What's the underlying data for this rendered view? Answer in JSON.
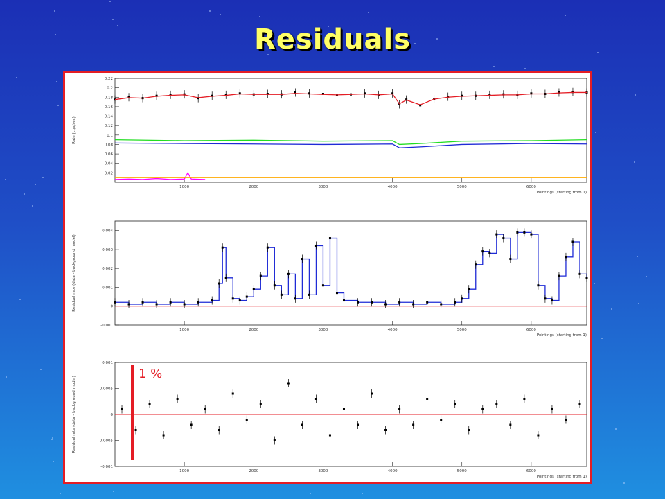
{
  "slide": {
    "title": "Residuals",
    "annotation": "1 %",
    "colors": {
      "title": "#ffff66",
      "frame": "#e41d25",
      "annotation": "#e41d25"
    }
  },
  "chart_data": [
    {
      "type": "scatter",
      "title": "",
      "ylabel": "Rate (ct/s/sec)",
      "xlabel": "Pointings (starting from 1)",
      "xlim": [
        0,
        6800
      ],
      "ylim": [
        0,
        0.22
      ],
      "xticks": [
        1000,
        2000,
        3000,
        4000,
        5000,
        6000
      ],
      "yticks": [
        0.02,
        0.04,
        0.06,
        0.08,
        0.1,
        0.12,
        0.14,
        0.16,
        0.18,
        0.2,
        0.22
      ],
      "yticklabels": [
        "0.02",
        "0.04",
        "0.06",
        "0.08",
        "0.1",
        "0.12",
        "0.14",
        "0.16",
        "0.18",
        "0.2",
        "0.22"
      ],
      "series": [
        {
          "color": "#000000",
          "style": "points",
          "x": [
            0,
            200,
            400,
            600,
            800,
            1000,
            1200,
            1400,
            1600,
            1800,
            2000,
            2200,
            2400,
            2600,
            2800,
            3000,
            3200,
            3400,
            3600,
            3800,
            4000,
            4100,
            4200,
            4400,
            4600,
            4800,
            5000,
            5200,
            5400,
            5600,
            5800,
            6000,
            6200,
            6400,
            6600,
            6800
          ],
          "y": [
            0.175,
            0.18,
            0.178,
            0.183,
            0.185,
            0.186,
            0.178,
            0.183,
            0.185,
            0.188,
            0.186,
            0.187,
            0.186,
            0.19,
            0.188,
            0.187,
            0.185,
            0.186,
            0.188,
            0.185,
            0.188,
            0.165,
            0.175,
            0.163,
            0.176,
            0.181,
            0.183,
            0.183,
            0.185,
            0.186,
            0.185,
            0.188,
            0.187,
            0.19,
            0.191,
            0.19
          ]
        },
        {
          "color": "#e41d25",
          "style": "line",
          "x": [
            0,
            200,
            400,
            600,
            800,
            1000,
            1200,
            1400,
            1600,
            1800,
            2000,
            2200,
            2400,
            2600,
            2800,
            3000,
            3200,
            3400,
            3600,
            3800,
            4000,
            4100,
            4200,
            4400,
            4600,
            4800,
            5000,
            5200,
            5400,
            5600,
            5800,
            6000,
            6200,
            6400,
            6600,
            6800
          ],
          "y": [
            0.175,
            0.179,
            0.178,
            0.182,
            0.184,
            0.185,
            0.179,
            0.182,
            0.184,
            0.187,
            0.186,
            0.186,
            0.186,
            0.188,
            0.187,
            0.186,
            0.185,
            0.186,
            0.187,
            0.185,
            0.187,
            0.166,
            0.174,
            0.164,
            0.176,
            0.18,
            0.182,
            0.183,
            0.184,
            0.185,
            0.185,
            0.187,
            0.187,
            0.189,
            0.19,
            0.19
          ]
        },
        {
          "color": "#22dd22",
          "style": "line",
          "x": [
            0,
            1000,
            2000,
            3000,
            4000,
            4100,
            4400,
            5000,
            6000,
            6800
          ],
          "y": [
            0.09,
            0.088,
            0.089,
            0.087,
            0.088,
            0.08,
            0.082,
            0.087,
            0.088,
            0.09
          ]
        },
        {
          "color": "#1f2bd6",
          "style": "line",
          "x": [
            0,
            1000,
            2000,
            3000,
            4000,
            4100,
            4400,
            5000,
            6000,
            6800
          ],
          "y": [
            0.083,
            0.082,
            0.081,
            0.08,
            0.081,
            0.073,
            0.075,
            0.08,
            0.082,
            0.081
          ]
        },
        {
          "color": "#ff00ff",
          "style": "line",
          "x": [
            0,
            200,
            400,
            600,
            800,
            1000,
            1050,
            1100,
            1300
          ],
          "y": [
            0.006,
            0.007,
            0.006,
            0.008,
            0.006,
            0.007,
            0.02,
            0.007,
            0.006
          ]
        },
        {
          "color": "#ffaa00",
          "style": "line",
          "x": [
            0,
            6800
          ],
          "y": [
            0.01,
            0.01
          ]
        }
      ]
    },
    {
      "type": "line",
      "title": "",
      "ylabel": "Residual rate (data - background model)",
      "xlabel": "Pointings (starting from 1)",
      "xlim": [
        0,
        6800
      ],
      "ylim": [
        -0.001,
        0.0045
      ],
      "xticks": [
        1000,
        2000,
        3000,
        4000,
        5000,
        6000
      ],
      "yticks": [
        -0.001,
        0,
        0.001,
        0.002,
        0.003,
        0.004
      ],
      "yticklabels": [
        "-0.001",
        "0",
        "0.001",
        "0.002",
        "0.003",
        "0.004"
      ],
      "reference_line": 0,
      "series": [
        {
          "color": "#1f2bd6",
          "style": "step",
          "x": [
            0,
            200,
            400,
            600,
            800,
            1000,
            1200,
            1400,
            1500,
            1550,
            1600,
            1700,
            1800,
            1900,
            2000,
            2100,
            2200,
            2300,
            2400,
            2500,
            2600,
            2700,
            2800,
            2900,
            3000,
            3100,
            3200,
            3300,
            3500,
            3700,
            3900,
            4100,
            4300,
            4500,
            4700,
            4900,
            5000,
            5100,
            5200,
            5300,
            5400,
            5500,
            5600,
            5700,
            5800,
            5900,
            6000,
            6100,
            6200,
            6300,
            6400,
            6500,
            6600,
            6700,
            6800
          ],
          "y": [
            0.0002,
            0.0001,
            0.0002,
            0.0001,
            0.0002,
            0.0001,
            0.0002,
            0.0003,
            0.0012,
            0.0031,
            0.0015,
            0.0004,
            0.0003,
            0.0005,
            0.0009,
            0.0016,
            0.0031,
            0.0011,
            0.0006,
            0.0017,
            0.0004,
            0.0025,
            0.0006,
            0.0032,
            0.0011,
            0.0036,
            0.0007,
            0.0003,
            0.0002,
            0.0002,
            0.0001,
            0.0002,
            0.0001,
            0.0002,
            0.0001,
            0.0002,
            0.0004,
            0.0009,
            0.0022,
            0.0029,
            0.0028,
            0.0038,
            0.0036,
            0.0025,
            0.0039,
            0.0039,
            0.0038,
            0.0011,
            0.0004,
            0.0003,
            0.0016,
            0.0026,
            0.0034,
            0.0017,
            0.0015
          ]
        },
        {
          "color": "#000000",
          "style": "points",
          "x": [
            0,
            200,
            400,
            600,
            800,
            1000,
            1200,
            1400,
            1500,
            1550,
            1600,
            1700,
            1800,
            1900,
            2000,
            2100,
            2200,
            2300,
            2400,
            2500,
            2600,
            2700,
            2800,
            2900,
            3000,
            3100,
            3200,
            3300,
            3500,
            3700,
            3900,
            4100,
            4300,
            4500,
            4700,
            4900,
            5000,
            5100,
            5200,
            5300,
            5400,
            5500,
            5600,
            5700,
            5800,
            5900,
            6000,
            6100,
            6200,
            6300,
            6400,
            6500,
            6600,
            6700,
            6800
          ],
          "y": [
            0.0002,
            0.0001,
            0.0002,
            0.0001,
            0.0002,
            0.0001,
            0.0002,
            0.0003,
            0.0012,
            0.0031,
            0.0015,
            0.0004,
            0.0003,
            0.0005,
            0.0009,
            0.0016,
            0.0031,
            0.0011,
            0.0006,
            0.0017,
            0.0004,
            0.0025,
            0.0006,
            0.0032,
            0.0011,
            0.0036,
            0.0007,
            0.0003,
            0.0002,
            0.0002,
            0.0001,
            0.0002,
            0.0001,
            0.0002,
            0.0001,
            0.0002,
            0.0004,
            0.0009,
            0.0022,
            0.0029,
            0.0028,
            0.0038,
            0.0036,
            0.0025,
            0.0039,
            0.0039,
            0.0038,
            0.0011,
            0.0004,
            0.0003,
            0.0016,
            0.0026,
            0.0034,
            0.0017,
            0.0015
          ]
        }
      ]
    },
    {
      "type": "scatter",
      "title": "",
      "ylabel": "Residual rate (data - background model)",
      "xlabel": "Pointings (starting from 1)",
      "xlim": [
        0,
        6800
      ],
      "ylim": [
        -0.001,
        0.001
      ],
      "xticks": [
        1000,
        2000,
        3000,
        4000,
        5000,
        6000
      ],
      "yticks": [
        -0.001,
        -0.0005,
        0,
        0.0005,
        0.001
      ],
      "yticklabels": [
        "-0.001",
        "-0.0005",
        "0",
        "0.0005",
        "0.001"
      ],
      "reference_line": 0,
      "series": [
        {
          "color": "#000000",
          "style": "points",
          "x": [
            100,
            300,
            500,
            700,
            900,
            1100,
            1300,
            1500,
            1700,
            1900,
            2100,
            2300,
            2500,
            2700,
            2900,
            3100,
            3300,
            3500,
            3700,
            3900,
            4100,
            4300,
            4500,
            4700,
            4900,
            5100,
            5300,
            5500,
            5700,
            5900,
            6100,
            6300,
            6500,
            6700
          ],
          "y": [
            0.0001,
            -0.0003,
            0.0002,
            -0.0004,
            0.0003,
            -0.0002,
            0.0001,
            -0.0003,
            0.0004,
            -0.0001,
            0.0002,
            -0.0005,
            0.0006,
            -0.0002,
            0.0003,
            -0.0004,
            0.0001,
            -0.0002,
            0.0004,
            -0.0003,
            0.0001,
            -0.0002,
            0.0003,
            -0.0001,
            0.0002,
            -0.0003,
            0.0001,
            0.0002,
            -0.0002,
            0.0003,
            -0.0004,
            0.0001,
            -0.0001,
            0.0002
          ]
        }
      ]
    }
  ]
}
